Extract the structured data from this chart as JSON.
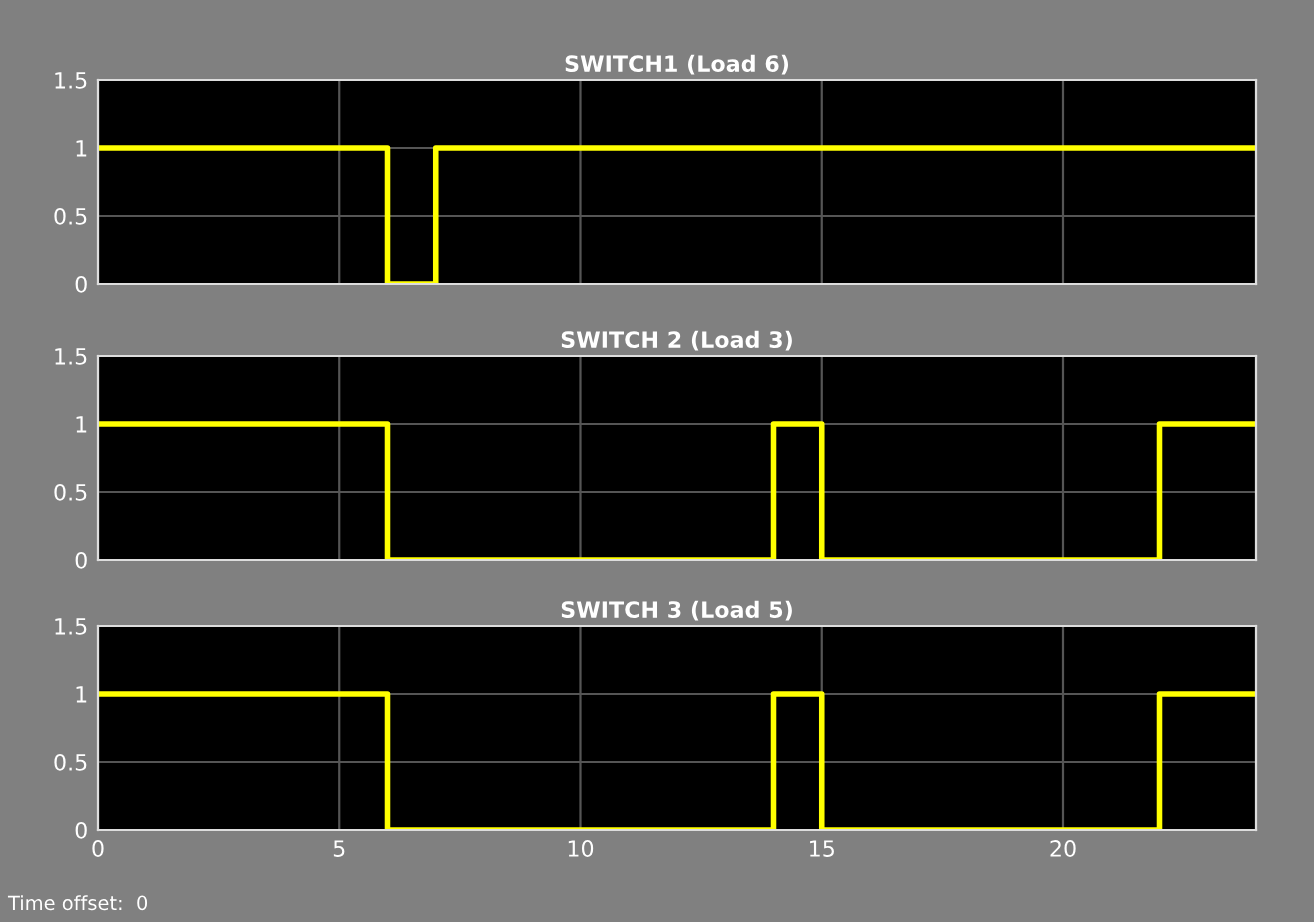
{
  "chart_data": [
    {
      "type": "step",
      "title": "SWITCH1 (Load 6)",
      "x": [
        0,
        6,
        7,
        24
      ],
      "series": [
        {
          "color": "#ffff00",
          "values": [
            1,
            0,
            1,
            1
          ]
        }
      ],
      "xlim": [
        0,
        24
      ],
      "xticks": [
        0,
        5,
        10,
        15,
        20
      ],
      "ylim": [
        0,
        1.5
      ],
      "yticks": [
        0,
        0.5,
        1,
        1.5
      ],
      "grid": true,
      "tick_labels": "y"
    },
    {
      "type": "step",
      "title": "SWITCH 2 (Load 3)",
      "x": [
        0,
        6,
        14,
        15,
        22,
        24
      ],
      "series": [
        {
          "color": "#ffff00",
          "values": [
            1,
            0,
            1,
            0,
            1,
            1
          ]
        }
      ],
      "xlim": [
        0,
        24
      ],
      "xticks": [
        0,
        5,
        10,
        15,
        20
      ],
      "ylim": [
        0,
        1.5
      ],
      "yticks": [
        0,
        0.5,
        1,
        1.5
      ],
      "grid": true,
      "tick_labels": "y"
    },
    {
      "type": "step",
      "title": "SWITCH 3 (Load 5)",
      "x": [
        0,
        6,
        14,
        15,
        22,
        24
      ],
      "series": [
        {
          "color": "#ffff00",
          "values": [
            1,
            0,
            1,
            0,
            1,
            1
          ]
        }
      ],
      "xlim": [
        0,
        24
      ],
      "xticks": [
        0,
        5,
        10,
        15,
        20
      ],
      "ylim": [
        0,
        1.5
      ],
      "yticks": [
        0,
        0.5,
        1,
        1.5
      ],
      "grid": true,
      "annotations": [
        "Time offset:  0"
      ]
    }
  ]
}
